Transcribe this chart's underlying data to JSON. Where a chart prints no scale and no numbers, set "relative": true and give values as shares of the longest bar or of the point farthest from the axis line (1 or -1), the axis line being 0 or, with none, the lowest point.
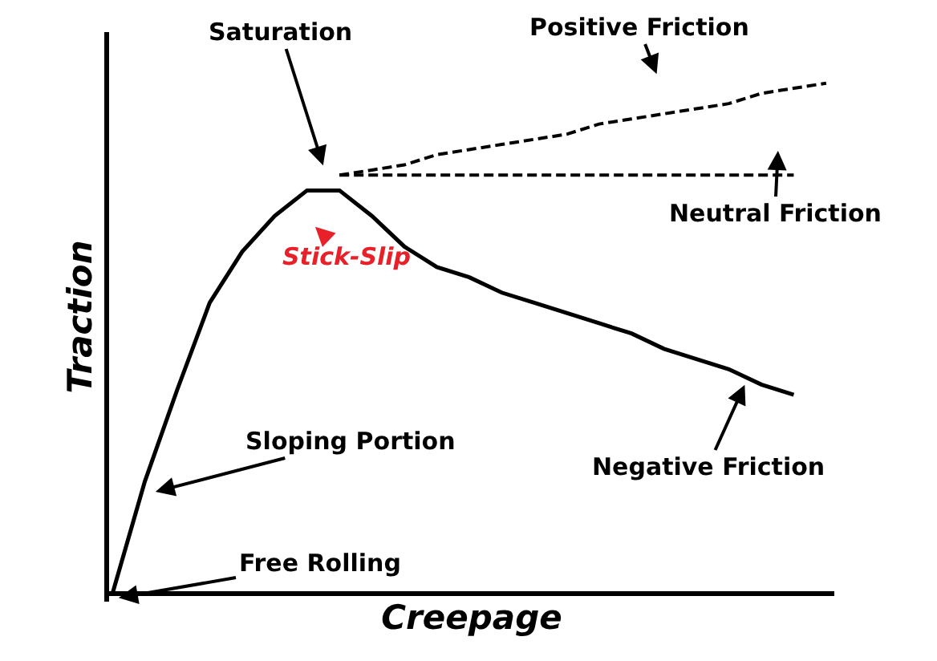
{
  "chart_data": {
    "type": "line",
    "relative": true,
    "xlabel": "Creepage",
    "ylabel": "Traction",
    "categories": [
      null,
      null,
      null,
      null,
      null,
      null,
      null,
      null,
      null,
      null,
      null,
      null,
      null,
      null,
      null,
      null,
      null,
      null,
      null,
      null,
      null,
      null,
      null
    ],
    "series": [
      {
        "color": "#000000",
        "line_style": "solid",
        "values": [
          0,
          0.22,
          0.4,
          0.57,
          0.67,
          0.74,
          0.79,
          0.79,
          0.74,
          0.68,
          0.64,
          0.62,
          0.59,
          0.57,
          0.55,
          0.53,
          0.51,
          0.48,
          0.46,
          0.44,
          0.41,
          0.39,
          null
        ]
      },
      {
        "color": "#000000",
        "line_style": "dashed",
        "values": [
          null,
          null,
          null,
          null,
          null,
          null,
          null,
          0.82,
          0.83,
          0.84,
          0.86,
          0.87,
          0.88,
          0.89,
          0.9,
          0.92,
          0.93,
          0.94,
          0.95,
          0.96,
          0.98,
          0.99,
          1.0
        ]
      },
      {
        "color": "#000000",
        "line_style": "dashed",
        "values": [
          null,
          null,
          null,
          null,
          null,
          null,
          null,
          0.82,
          0.82,
          0.82,
          0.82,
          0.82,
          0.82,
          0.82,
          0.82,
          0.82,
          0.82,
          0.82,
          0.82,
          0.82,
          0.82,
          0.82,
          null
        ]
      }
    ],
    "annotations": [
      "Saturation",
      "Positive Friction",
      "Neutral Friction",
      "Stick-Slip",
      "Sloping Portion",
      "Negative Friction",
      "Free Rolling"
    ],
    "marker": "none"
  }
}
